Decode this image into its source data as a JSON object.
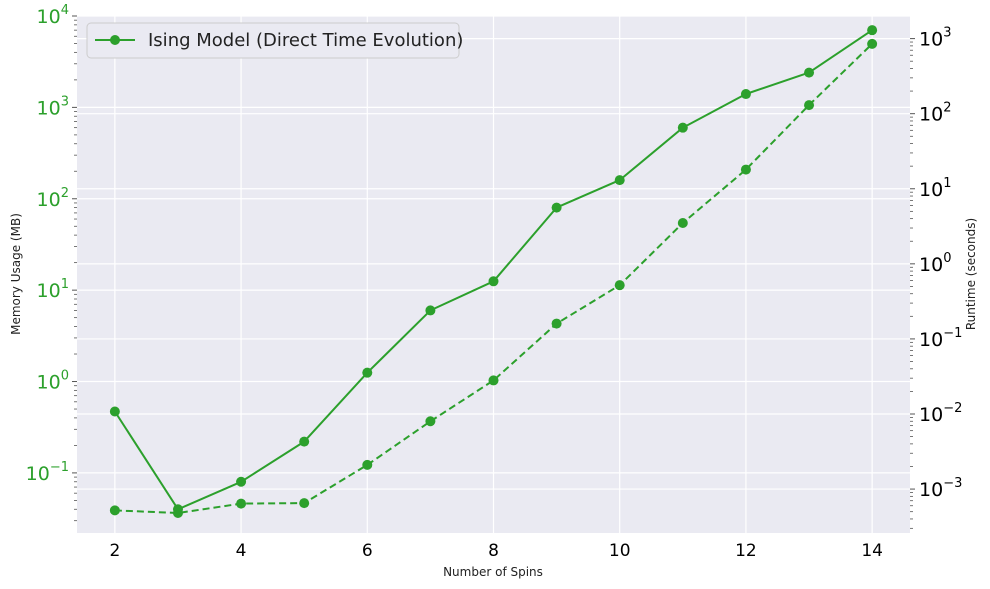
{
  "chart_data": {
    "type": "line",
    "title": "",
    "xlabel": "Number of Spins",
    "ylabel_left": "Memory Usage (MB)",
    "ylabel_right": "Runtime (seconds)",
    "x": [
      2,
      3,
      4,
      5,
      6,
      7,
      8,
      9,
      10,
      11,
      12,
      13,
      14
    ],
    "x_ticks": [
      2,
      4,
      6,
      8,
      10,
      12,
      14
    ],
    "xlim": [
      1.4,
      14.6
    ],
    "ylim_left": [
      0.022,
      10000
    ],
    "ylim_right": [
      0.00026,
      2000
    ],
    "yscale_left": "log",
    "yscale_right": "log",
    "y_ticks_left_exp": [
      -1,
      0,
      1,
      2,
      3,
      4
    ],
    "y_ticks_right_exp": [
      -3,
      -2,
      -1,
      0,
      1,
      2,
      3
    ],
    "grid": true,
    "legend_position": "top-left",
    "series": [
      {
        "name": "Ising Model (Direct Time Evolution)",
        "axis": "left",
        "style": "solid",
        "color": "#2ca02c",
        "values": [
          0.47,
          0.04,
          0.08,
          0.22,
          1.25,
          6.0,
          12.5,
          80,
          160,
          600,
          1400,
          2400,
          7000
        ]
      },
      {
        "axis": "right",
        "style": "dashed",
        "color": "#2ca02c",
        "values": [
          0.00052,
          0.00048,
          0.00064,
          0.00065,
          0.0021,
          0.008,
          0.028,
          0.16,
          0.52,
          3.5,
          18,
          130,
          850
        ]
      }
    ]
  },
  "colors": {
    "accent": "#2ca02c",
    "plot_background": "#eaeaf2",
    "grid": "#ffffff"
  }
}
